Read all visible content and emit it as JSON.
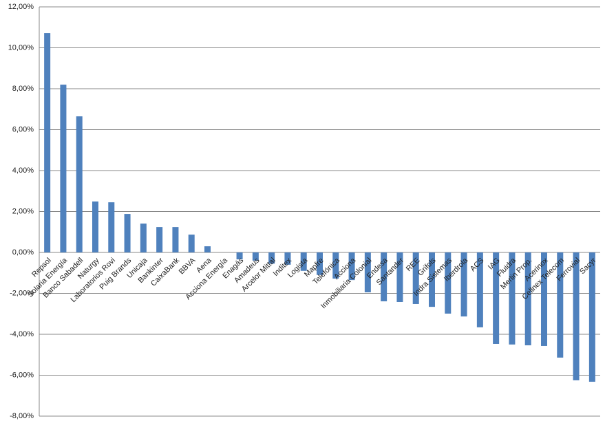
{
  "chart_data": {
    "type": "bar",
    "categories": [
      "Repsol",
      "Solaria Energía",
      "Banco Sabadell",
      "Naturgy",
      "Laboratorios Rovi",
      "Puig Brands",
      "Unicaja",
      "Bankinter",
      "CaixaBank",
      "BBVA",
      "Aena",
      "Acciona Energía",
      "Enagás",
      "Amadeus",
      "Arcelor Mittal",
      "Inditex",
      "Logista",
      "Mapfre",
      "Telefónica",
      "Acciona",
      "Inmobiliaria Colonial",
      "Endesa",
      "Santander",
      "REE",
      "Grifols",
      "Indra Sistemas",
      "Iberdrola",
      "ACS",
      "IAG",
      "Fluidra",
      "Merlin Prop.",
      "Acerinox",
      "Cellnex Telecom",
      "Ferrovial",
      "Sacyr"
    ],
    "values": [
      10.72,
      8.2,
      6.65,
      2.49,
      2.45,
      1.88,
      1.41,
      1.24,
      1.24,
      0.87,
      0.3,
      0.0,
      -0.34,
      -0.4,
      -0.55,
      -0.6,
      -0.9,
      -1.1,
      -1.28,
      -1.35,
      -1.95,
      -2.39,
      -2.42,
      -2.52,
      -2.66,
      -2.99,
      -3.13,
      -3.66,
      -4.47,
      -4.5,
      -4.54,
      -4.57,
      -5.14,
      -6.25,
      -6.32
    ],
    "color": "#4f81bd",
    "ylim": [
      -8,
      12
    ],
    "yticks": [
      {
        "value": -8,
        "label": "-8,00%"
      },
      {
        "value": -6,
        "label": "-6,00%"
      },
      {
        "value": -4,
        "label": "-4,00%"
      },
      {
        "value": -2,
        "label": "-2,00%"
      },
      {
        "value": 0,
        "label": "0,00%"
      },
      {
        "value": 2,
        "label": "2,00%"
      },
      {
        "value": 4,
        "label": "4,00%"
      },
      {
        "value": 6,
        "label": "6,00%"
      },
      {
        "value": 8,
        "label": "8,00%"
      },
      {
        "value": 10,
        "label": "10,00%"
      },
      {
        "value": 12,
        "label": "12,00%"
      }
    ],
    "grid": true
  }
}
